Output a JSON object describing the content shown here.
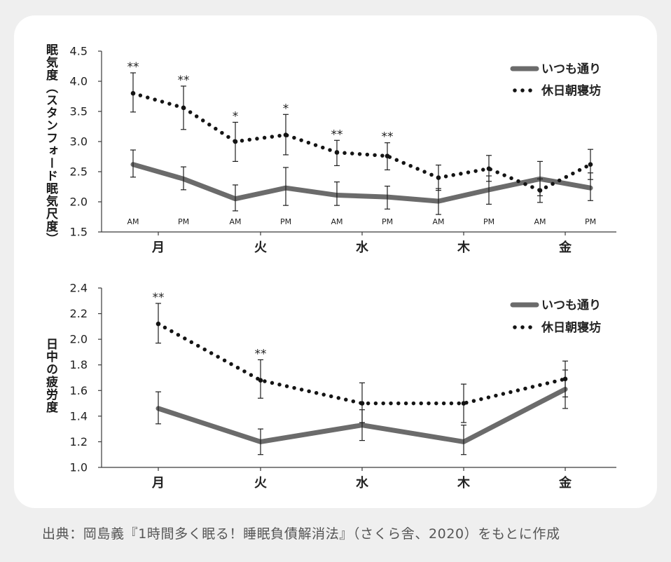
{
  "caption": "出典：岡島義『1時間多く眠る！睡眠負債解消法』（さくら舎、2020）をもとに作成",
  "colors": {
    "page_background": "#efefef",
    "card_background": "#ffffff",
    "usual_line": "#6b6b6b",
    "sleep_in_line": "#141414",
    "error_bar": "#1e1e1e",
    "axis": "#3a3a3a",
    "text": "#222222",
    "caption_text": "#555555"
  },
  "chart_data": [
    {
      "type": "line",
      "ylabel": "眠気度（スタンフォード眠気尺度）",
      "ylim": [
        1.5,
        4.5
      ],
      "yticks": [
        "1.5",
        "2.0",
        "2.5",
        "3.0",
        "3.5",
        "4.0",
        "4.5"
      ],
      "categories": [
        "AM",
        "PM",
        "AM",
        "PM",
        "AM",
        "PM",
        "AM",
        "PM",
        "AM",
        "PM"
      ],
      "groups": [
        "月",
        "火",
        "水",
        "木",
        "金"
      ],
      "grid": false,
      "legend_position": "top-right",
      "series": [
        {
          "name": "いつも通り",
          "values": [
            2.62,
            2.38,
            2.05,
            2.23,
            2.11,
            2.08,
            2.01,
            2.2,
            2.38,
            2.23
          ],
          "err_low": [
            2.41,
            2.2,
            1.85,
            1.94,
            1.94,
            1.88,
            1.79,
            1.96,
            2.1,
            2.02
          ],
          "err_high": [
            2.86,
            2.58,
            2.28,
            2.57,
            2.33,
            2.26,
            2.22,
            2.43,
            2.67,
            2.48
          ]
        },
        {
          "name": "休日朝寝坊",
          "values": [
            3.8,
            3.56,
            3.0,
            3.11,
            2.82,
            2.76,
            2.4,
            2.55,
            2.19,
            2.62
          ],
          "err_low": [
            3.49,
            3.2,
            2.67,
            2.78,
            2.6,
            2.53,
            2.19,
            2.34,
            1.99,
            2.37
          ],
          "err_high": [
            4.14,
            3.92,
            3.32,
            3.45,
            3.02,
            2.98,
            2.61,
            2.77,
            2.38,
            2.87
          ]
        }
      ],
      "significance": [
        {
          "index": 0,
          "mark": "**"
        },
        {
          "index": 1,
          "mark": "**"
        },
        {
          "index": 2,
          "mark": "*"
        },
        {
          "index": 3,
          "mark": "*"
        },
        {
          "index": 4,
          "mark": "**"
        },
        {
          "index": 5,
          "mark": "**"
        }
      ]
    },
    {
      "type": "line",
      "ylabel": "日中の疲労度",
      "ylim": [
        1.0,
        2.4
      ],
      "yticks": [
        "1.0",
        "1.2",
        "1.4",
        "1.6",
        "1.8",
        "2.0",
        "2.2",
        "2.4"
      ],
      "categories": [
        "月",
        "火",
        "水",
        "木",
        "金"
      ],
      "grid": false,
      "legend_position": "top-right",
      "series": [
        {
          "name": "いつも通り",
          "values": [
            1.46,
            1.2,
            1.33,
            1.2,
            1.61
          ],
          "err_low": [
            1.34,
            1.1,
            1.21,
            1.1,
            1.46
          ],
          "err_high": [
            1.59,
            1.3,
            1.45,
            1.33,
            1.76
          ]
        },
        {
          "name": "休日朝寝坊",
          "values": [
            2.12,
            1.68,
            1.5,
            1.5,
            1.69
          ],
          "err_low": [
            1.97,
            1.54,
            1.35,
            1.35,
            1.55
          ],
          "err_high": [
            2.28,
            1.84,
            1.66,
            1.65,
            1.83
          ]
        }
      ],
      "significance": [
        {
          "index": 0,
          "mark": "**"
        },
        {
          "index": 1,
          "mark": "**"
        }
      ]
    }
  ]
}
